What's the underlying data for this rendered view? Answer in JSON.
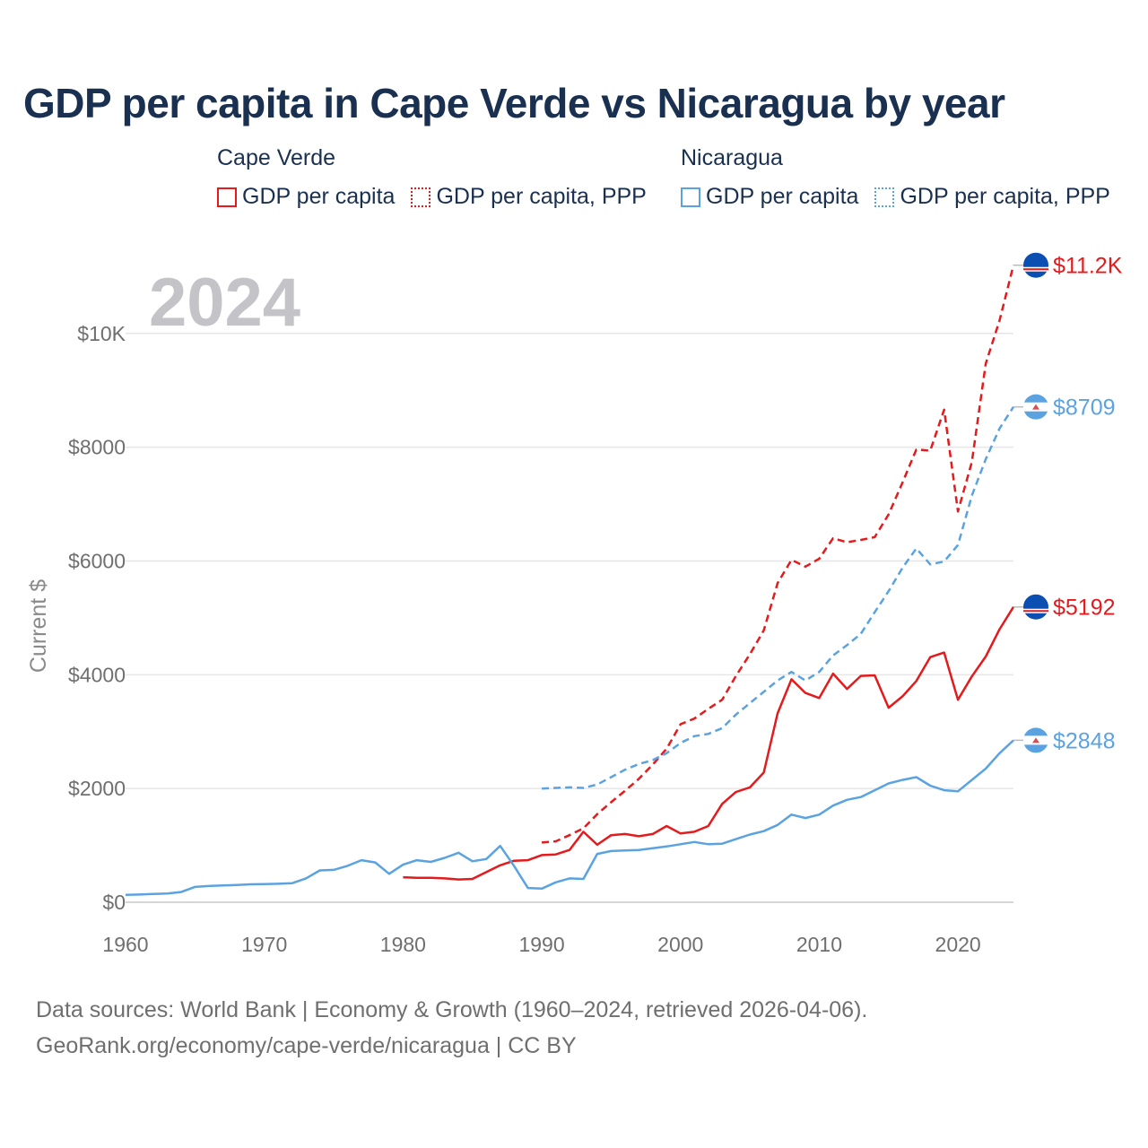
{
  "title": "GDP per capita in Cape Verde vs Nicaragua by year",
  "legend": {
    "groups": [
      {
        "country": "Cape Verde",
        "color": "#e41a1c",
        "items": [
          {
            "label": "GDP per capita",
            "style": "solid"
          },
          {
            "label": "GDP per capita, PPP",
            "style": "dotted"
          }
        ]
      },
      {
        "country": "Nicaragua",
        "color": "#5ba3e0",
        "items": [
          {
            "label": "GDP per capita",
            "style": "solid"
          },
          {
            "label": "GDP per capita, PPP",
            "style": "dotted"
          }
        ]
      }
    ]
  },
  "footer": {
    "line1": "Data sources: World Bank | Economy & Growth (1960–2024, retrieved 2026-04-06).",
    "line2": "GeoRank.org/economy/cape-verde/nicaragua | CC BY"
  },
  "chart_data": {
    "type": "line",
    "title": "GDP per capita in Cape Verde vs Nicaragua by year",
    "year_label": "2024",
    "xlabel": "",
    "ylabel": "Current $",
    "xlim": [
      1960,
      2024
    ],
    "ylim": [
      0,
      11700
    ],
    "x_ticks": [
      1960,
      1970,
      1980,
      1990,
      2000,
      2010,
      2020
    ],
    "y_ticks": [
      {
        "value": 0,
        "label": "$0"
      },
      {
        "value": 2000,
        "label": "$2000"
      },
      {
        "value": 4000,
        "label": "$4000"
      },
      {
        "value": 6000,
        "label": "$6000"
      },
      {
        "value": 8000,
        "label": "$8000"
      },
      {
        "value": 10000,
        "label": "$10K"
      }
    ],
    "grid": true,
    "series": [
      {
        "name": "Cape Verde GDP per capita, PPP",
        "country": "Cape Verde",
        "color": "#e41a1c",
        "dash": "dashed",
        "end_label": "$11.2K",
        "start_year": 1990,
        "values": [
          1050,
          1070,
          1180,
          1300,
          1550,
          1760,
          1960,
          2170,
          2420,
          2700,
          3130,
          3230,
          3400,
          3560,
          3980,
          4360,
          4780,
          5610,
          6020,
          5900,
          6040,
          6400,
          6330,
          6370,
          6420,
          6820,
          7380,
          7960,
          7940,
          8660,
          6870,
          7740,
          9470,
          10230,
          11200
        ]
      },
      {
        "name": "Nicaragua GDP per capita, PPP",
        "country": "Nicaragua",
        "color": "#5ba3e0",
        "dash": "dashed",
        "end_label": "$8709",
        "start_year": 1990,
        "values": [
          2000,
          2010,
          2020,
          2010,
          2070,
          2200,
          2330,
          2430,
          2500,
          2620,
          2800,
          2920,
          2960,
          3060,
          3300,
          3500,
          3700,
          3900,
          4050,
          3900,
          4050,
          4340,
          4520,
          4720,
          5100,
          5470,
          5880,
          6220,
          5940,
          5990,
          6280,
          7150,
          7790,
          8330,
          8709
        ]
      },
      {
        "name": "Cape Verde GDP per capita",
        "country": "Cape Verde",
        "color": "#e41a1c",
        "dash": "solid",
        "end_label": "$5192",
        "start_year": 1980,
        "values": [
          440,
          430,
          430,
          420,
          400,
          410,
          530,
          650,
          730,
          740,
          830,
          840,
          920,
          1240,
          1010,
          1180,
          1200,
          1160,
          1200,
          1340,
          1210,
          1240,
          1340,
          1730,
          1940,
          2020,
          2280,
          3320,
          3920,
          3680,
          3590,
          4020,
          3750,
          3980,
          3990,
          3420,
          3620,
          3890,
          4310,
          4390,
          3560,
          3970,
          4320,
          4800,
          5192
        ]
      },
      {
        "name": "Nicaragua GDP per capita",
        "country": "Nicaragua",
        "color": "#5ba3e0",
        "dash": "solid",
        "end_label": "$2848",
        "start_year": 1960,
        "values": [
          130,
          135,
          145,
          155,
          180,
          270,
          285,
          295,
          305,
          315,
          320,
          325,
          335,
          420,
          560,
          570,
          640,
          740,
          700,
          500,
          660,
          740,
          710,
          780,
          870,
          720,
          760,
          990,
          640,
          250,
          240,
          350,
          420,
          410,
          850,
          900,
          910,
          920,
          950,
          980,
          1020,
          1060,
          1020,
          1030,
          1110,
          1190,
          1250,
          1360,
          1540,
          1480,
          1540,
          1700,
          1800,
          1850,
          1970,
          2090,
          2150,
          2200,
          2050,
          1970,
          1950,
          2150,
          2350,
          2620,
          2848
        ]
      }
    ]
  }
}
